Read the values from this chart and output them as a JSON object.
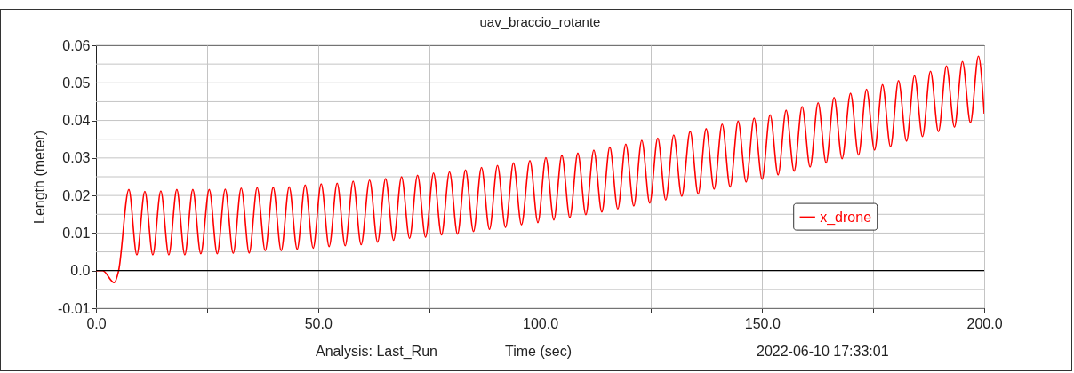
{
  "chart_data": {
    "type": "line",
    "title": "uav_braccio_rotante",
    "xlabel": "Time (sec)",
    "ylabel": "Length (meter)",
    "annotations": [
      "Analysis:  Last_Run",
      "2022-06-10 17:33:01"
    ],
    "xlim": [
      0,
      200
    ],
    "xticks": [
      {
        "value": 0,
        "label": "0.0"
      },
      {
        "value": 25,
        "label": null
      },
      {
        "value": 50,
        "label": "50.0"
      },
      {
        "value": 75,
        "label": null
      },
      {
        "value": 100,
        "label": "100.0"
      },
      {
        "value": 125,
        "label": null
      },
      {
        "value": 150,
        "label": "150.0"
      },
      {
        "value": 175,
        "label": null
      },
      {
        "value": 200,
        "label": "200.0"
      }
    ],
    "ylim": [
      -0.01,
      0.06
    ],
    "yticks": [
      -0.01,
      {
        "value": -0.005,
        "label": null
      },
      {
        "value": 0,
        "label": "0.0"
      },
      {
        "value": 0.005,
        "label": null
      },
      0.01,
      {
        "value": 0.015,
        "label": null
      },
      0.02,
      {
        "value": 0.025,
        "label": null
      },
      0.03,
      {
        "value": 0.035,
        "label": null
      },
      0.04,
      {
        "value": 0.045,
        "label": null
      },
      0.05,
      {
        "value": 0.055,
        "label": null
      },
      0.06
    ],
    "grid": true,
    "legend": "right",
    "line_style": "solid",
    "ref_lines": [
      {
        "axis": "y",
        "value": 0,
        "color": "#000000"
      }
    ],
    "series": [
      {
        "name": "x_drone",
        "color": "#ff0000",
        "x": [
          0,
          1.5,
          4.1,
          5.1,
          7.4,
          9.2,
          11.0,
          12.8,
          14.6,
          16.4,
          18.2,
          20.0,
          21.8,
          23.6,
          25.5,
          27.3,
          29.1,
          30.9,
          32.7,
          34.5,
          36.3,
          38.1,
          39.9,
          41.7,
          43.5,
          45.3,
          47.1,
          48.9,
          50.7,
          52.5,
          54.3,
          56.1,
          57.9,
          59.7,
          61.6,
          63.4,
          65.2,
          67.0,
          68.8,
          70.6,
          72.4,
          74.2,
          76.0,
          77.8,
          79.6,
          81.4,
          83.2,
          85.0,
          86.8,
          88.6,
          90.4,
          92.2,
          94.0,
          95.8,
          97.7,
          99.5,
          101.3,
          103.1,
          104.9,
          106.7,
          108.5,
          110.3,
          112.1,
          113.9,
          115.7,
          117.5,
          119.3,
          121.1,
          122.9,
          124.7,
          126.5,
          128.3,
          130.1,
          131.9,
          133.8,
          135.6,
          137.4,
          139.2,
          141.0,
          142.8,
          144.6,
          146.4,
          148.2,
          150.0,
          151.8,
          153.6,
          155.4,
          157.2,
          159.0,
          160.8,
          162.6,
          164.4,
          166.2,
          168.0,
          169.9,
          171.7,
          173.5,
          175.3,
          177.1,
          178.9,
          180.7,
          182.5,
          184.3,
          186.1,
          187.9,
          189.7,
          191.5,
          193.3,
          195.1,
          196.9,
          198.7,
          200
        ],
        "values": [
          0,
          0,
          -0.0032,
          0,
          0.0216,
          0.0042,
          0.0211,
          0.0042,
          0.0212,
          0.0042,
          0.0216,
          0.0042,
          0.0216,
          0.0045,
          0.0216,
          0.0045,
          0.0217,
          0.0046,
          0.022,
          0.0047,
          0.0221,
          0.0053,
          0.0222,
          0.0053,
          0.0223,
          0.0057,
          0.0228,
          0.006,
          0.0231,
          0.0064,
          0.0233,
          0.0066,
          0.0238,
          0.0069,
          0.0241,
          0.0076,
          0.0245,
          0.0081,
          0.025,
          0.0086,
          0.0254,
          0.0089,
          0.026,
          0.0095,
          0.0263,
          0.0097,
          0.0268,
          0.0104,
          0.0275,
          0.011,
          0.028,
          0.0115,
          0.0287,
          0.0122,
          0.0293,
          0.0128,
          0.0301,
          0.0135,
          0.0307,
          0.0141,
          0.0313,
          0.0149,
          0.0321,
          0.0156,
          0.0329,
          0.0164,
          0.0337,
          0.0172,
          0.0347,
          0.018,
          0.0353,
          0.0188,
          0.0361,
          0.0198,
          0.0371,
          0.0204,
          0.0378,
          0.0217,
          0.039,
          0.0223,
          0.0398,
          0.0236,
          0.0406,
          0.0243,
          0.0415,
          0.0255,
          0.0427,
          0.0265,
          0.0437,
          0.0276,
          0.0447,
          0.0287,
          0.0461,
          0.0298,
          0.0472,
          0.0308,
          0.0483,
          0.0321,
          0.0495,
          0.033,
          0.0506,
          0.0345,
          0.0519,
          0.0357,
          0.0531,
          0.037,
          0.0545,
          0.0382,
          0.0557,
          0.0394,
          0.0571,
          0.0418
        ]
      }
    ]
  }
}
